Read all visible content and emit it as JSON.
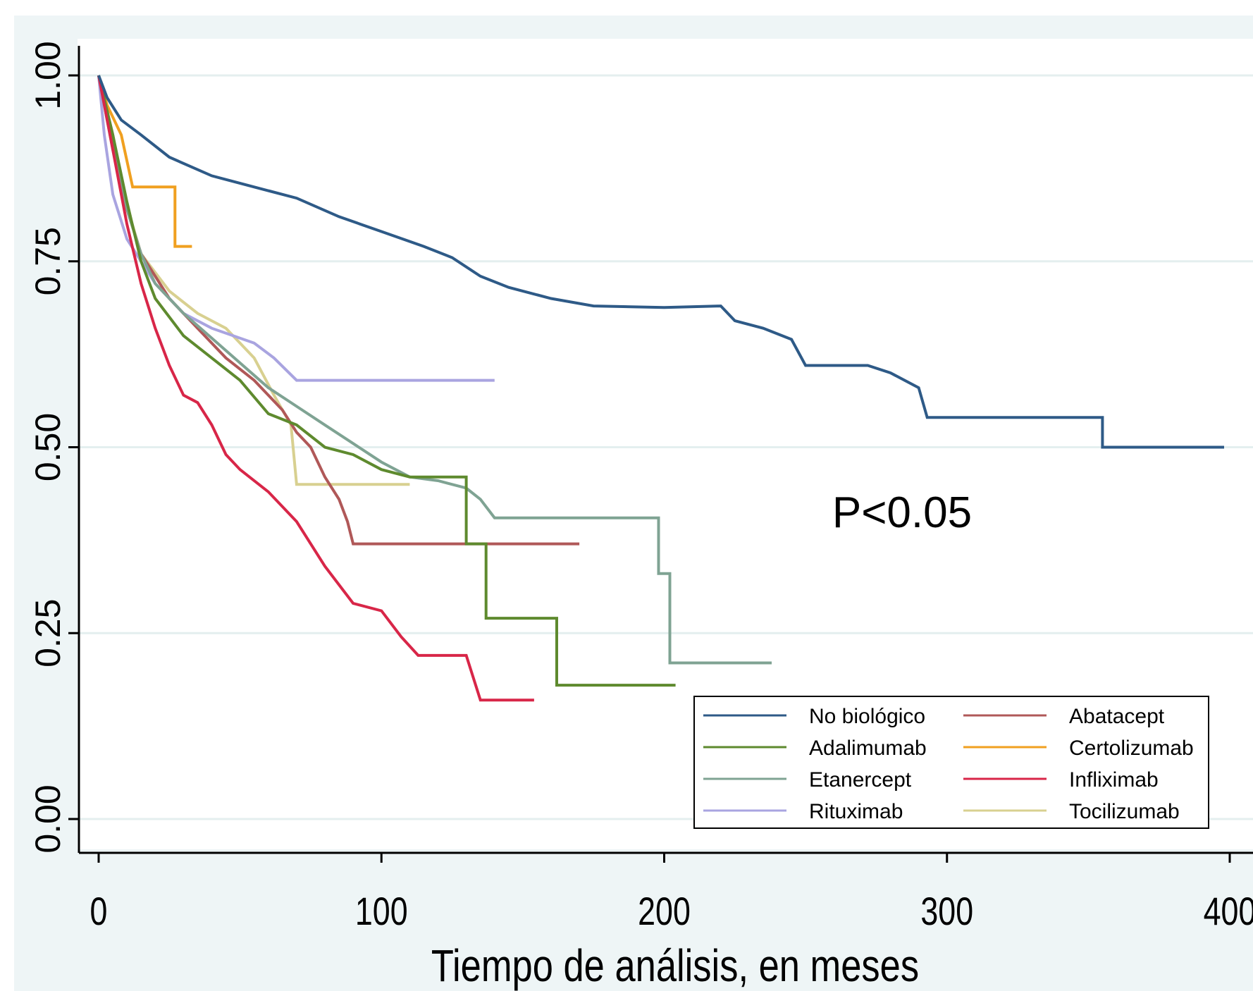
{
  "chart_data": {
    "type": "line",
    "title": "",
    "xlabel": "Tiempo de análisis, en meses",
    "ylabel": "",
    "xlim": [
      0,
      400
    ],
    "ylim": [
      0,
      1
    ],
    "x_ticks": [
      "0",
      "100",
      "200",
      "300",
      "400"
    ],
    "y_ticks": [
      "0.00",
      "0.25",
      "0.50",
      "0.75",
      "1.00"
    ],
    "grid": "horizontal",
    "annotation": "P<0.05",
    "legend_position": "bottom-right",
    "legend": [
      {
        "label": "No biológico",
        "color": "#2e5a87"
      },
      {
        "label": "Adalimumab",
        "color": "#5e8a2e"
      },
      {
        "label": "Etanercept",
        "color": "#7fa393"
      },
      {
        "label": "Rituximab",
        "color": "#a9a4e0"
      },
      {
        "label": "Abatacept",
        "color": "#b05858"
      },
      {
        "label": "Certolizumab",
        "color": "#f0a020"
      },
      {
        "label": "Infliximab",
        "color": "#d82648"
      },
      {
        "label": "Tocilizumab",
        "color": "#d8d090"
      }
    ],
    "series": [
      {
        "name": "No biológico",
        "color": "#2e5a87",
        "points": [
          [
            0,
            1.0
          ],
          [
            3,
            0.97
          ],
          [
            8,
            0.94
          ],
          [
            15,
            0.92
          ],
          [
            25,
            0.89
          ],
          [
            40,
            0.865
          ],
          [
            55,
            0.85
          ],
          [
            70,
            0.835
          ],
          [
            85,
            0.81
          ],
          [
            100,
            0.79
          ],
          [
            115,
            0.77
          ],
          [
            125,
            0.755
          ],
          [
            135,
            0.73
          ],
          [
            145,
            0.715
          ],
          [
            160,
            0.7
          ],
          [
            175,
            0.69
          ],
          [
            200,
            0.688
          ],
          [
            220,
            0.69
          ],
          [
            225,
            0.67
          ],
          [
            235,
            0.66
          ],
          [
            245,
            0.645
          ],
          [
            250,
            0.61
          ],
          [
            272,
            0.61
          ],
          [
            280,
            0.6
          ],
          [
            290,
            0.58
          ],
          [
            293,
            0.54
          ],
          [
            355,
            0.54
          ],
          [
            355,
            0.5
          ],
          [
            398,
            0.5
          ]
        ]
      },
      {
        "name": "Adalimumab",
        "color": "#5e8a2e",
        "points": [
          [
            0,
            1.0
          ],
          [
            5,
            0.92
          ],
          [
            10,
            0.83
          ],
          [
            15,
            0.75
          ],
          [
            20,
            0.7
          ],
          [
            30,
            0.65
          ],
          [
            40,
            0.62
          ],
          [
            50,
            0.59
          ],
          [
            60,
            0.545
          ],
          [
            70,
            0.53
          ],
          [
            80,
            0.5
          ],
          [
            90,
            0.49
          ],
          [
            100,
            0.47
          ],
          [
            110,
            0.46
          ],
          [
            130,
            0.46
          ],
          [
            130,
            0.37
          ],
          [
            137,
            0.37
          ],
          [
            137,
            0.27
          ],
          [
            162,
            0.27
          ],
          [
            162,
            0.18
          ],
          [
            204,
            0.18
          ]
        ]
      },
      {
        "name": "Etanercept",
        "color": "#7fa393",
        "points": [
          [
            0,
            1.0
          ],
          [
            5,
            0.9
          ],
          [
            10,
            0.82
          ],
          [
            15,
            0.76
          ],
          [
            20,
            0.72
          ],
          [
            30,
            0.68
          ],
          [
            45,
            0.63
          ],
          [
            60,
            0.58
          ],
          [
            70,
            0.555
          ],
          [
            80,
            0.53
          ],
          [
            90,
            0.505
          ],
          [
            100,
            0.48
          ],
          [
            110,
            0.46
          ],
          [
            120,
            0.455
          ],
          [
            130,
            0.445
          ],
          [
            135,
            0.43
          ],
          [
            140,
            0.405
          ],
          [
            198,
            0.405
          ],
          [
            198,
            0.33
          ],
          [
            202,
            0.33
          ],
          [
            202,
            0.21
          ],
          [
            238,
            0.21
          ]
        ]
      },
      {
        "name": "Rituximab",
        "color": "#a9a4e0",
        "points": [
          [
            0,
            1.0
          ],
          [
            2,
            0.92
          ],
          [
            5,
            0.84
          ],
          [
            10,
            0.78
          ],
          [
            15,
            0.75
          ],
          [
            20,
            0.72
          ],
          [
            30,
            0.68
          ],
          [
            40,
            0.66
          ],
          [
            55,
            0.64
          ],
          [
            62,
            0.62
          ],
          [
            70,
            0.59
          ],
          [
            140,
            0.59
          ]
        ]
      },
      {
        "name": "Abatacept",
        "color": "#b05858",
        "points": [
          [
            0,
            1.0
          ],
          [
            5,
            0.92
          ],
          [
            10,
            0.82
          ],
          [
            15,
            0.76
          ],
          [
            25,
            0.7
          ],
          [
            35,
            0.66
          ],
          [
            45,
            0.62
          ],
          [
            55,
            0.59
          ],
          [
            65,
            0.55
          ],
          [
            70,
            0.52
          ],
          [
            75,
            0.5
          ],
          [
            80,
            0.46
          ],
          [
            85,
            0.43
          ],
          [
            88,
            0.4
          ],
          [
            90,
            0.37
          ],
          [
            170,
            0.37
          ]
        ]
      },
      {
        "name": "Certolizumab",
        "color": "#f0a020",
        "points": [
          [
            0,
            1.0
          ],
          [
            3,
            0.96
          ],
          [
            8,
            0.92
          ],
          [
            12,
            0.85
          ],
          [
            27,
            0.85
          ],
          [
            27,
            0.77
          ],
          [
            33,
            0.77
          ]
        ]
      },
      {
        "name": "Infliximab",
        "color": "#d82648",
        "points": [
          [
            0,
            1.0
          ],
          [
            5,
            0.9
          ],
          [
            10,
            0.8
          ],
          [
            15,
            0.72
          ],
          [
            20,
            0.66
          ],
          [
            25,
            0.61
          ],
          [
            30,
            0.57
          ],
          [
            35,
            0.56
          ],
          [
            40,
            0.53
          ],
          [
            45,
            0.49
          ],
          [
            50,
            0.47
          ],
          [
            60,
            0.44
          ],
          [
            70,
            0.4
          ],
          [
            80,
            0.34
          ],
          [
            90,
            0.29
          ],
          [
            100,
            0.28
          ],
          [
            107,
            0.245
          ],
          [
            113,
            0.22
          ],
          [
            130,
            0.22
          ],
          [
            135,
            0.16
          ],
          [
            154,
            0.16
          ]
        ]
      },
      {
        "name": "Tocilizumab",
        "color": "#d8d090",
        "points": [
          [
            0,
            1.0
          ],
          [
            3,
            0.94
          ],
          [
            8,
            0.85
          ],
          [
            15,
            0.76
          ],
          [
            25,
            0.71
          ],
          [
            35,
            0.68
          ],
          [
            45,
            0.66
          ],
          [
            55,
            0.62
          ],
          [
            62,
            0.57
          ],
          [
            68,
            0.53
          ],
          [
            70,
            0.45
          ],
          [
            110,
            0.45
          ]
        ]
      }
    ]
  }
}
